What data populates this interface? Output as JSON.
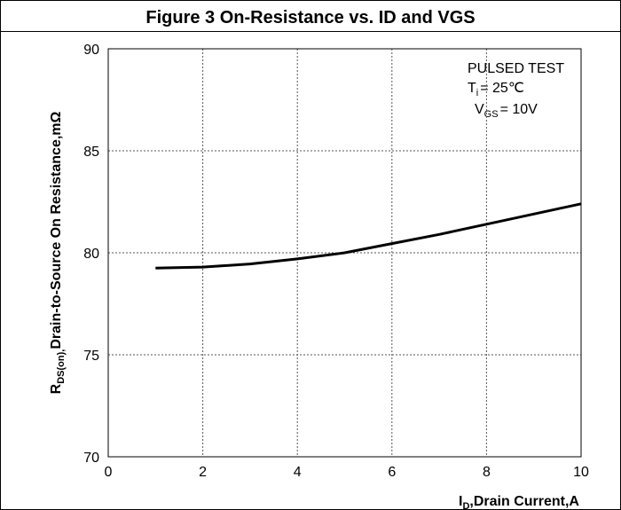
{
  "chart_data": {
    "type": "line",
    "title": "Figure 3 On-Resistance vs. ID and VGS",
    "xlabel": [
      "I",
      "D",
      ",Drain Current,A"
    ],
    "ylabel": [
      "R",
      "DS(on),",
      "Drain-to-Source On Resistance,mΩ"
    ],
    "annotations": [
      [
        "PULSED TEST"
      ],
      [
        "T",
        "i",
        "= 25℃"
      ],
      [
        "V",
        "GS",
        "= 10V"
      ]
    ],
    "x": [
      1,
      2,
      3,
      4,
      5,
      6,
      7,
      8,
      9,
      10
    ],
    "series": [
      {
        "color": "#000000",
        "values": [
          79.25,
          79.3,
          79.45,
          79.7,
          80.0,
          80.45,
          80.9,
          81.4,
          81.9,
          82.4
        ]
      }
    ],
    "xlim": [
      0,
      10
    ],
    "xticks": [
      0,
      2,
      4,
      6,
      8,
      10
    ],
    "ylim": [
      70,
      90
    ],
    "yticks": [
      70,
      75,
      80,
      85,
      90
    ],
    "grid": true
  }
}
